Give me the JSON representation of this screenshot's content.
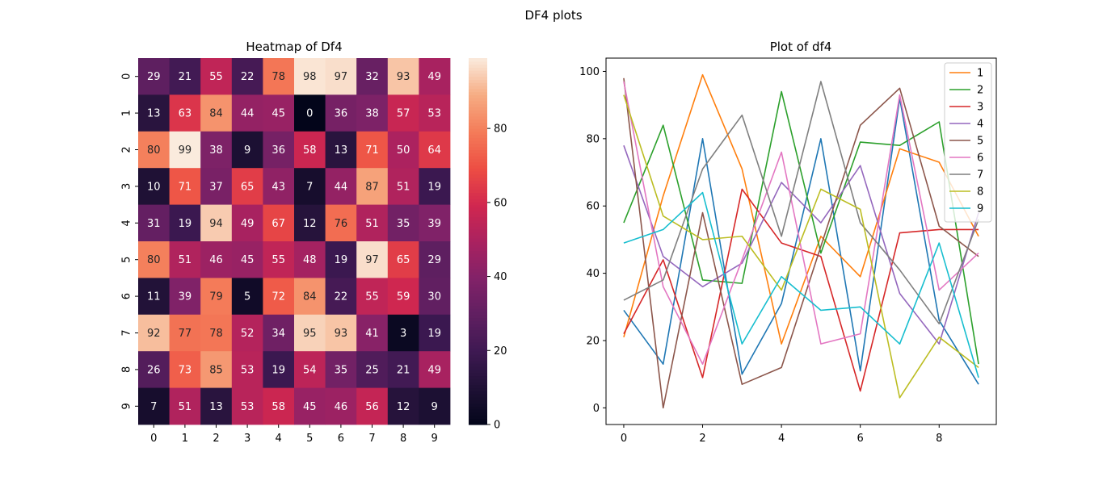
{
  "figure": {
    "suptitle": "DF4 plots"
  },
  "chart_data": [
    {
      "type": "heatmap",
      "title": "Heatmap of Df4",
      "xlabel": "",
      "ylabel": "",
      "x_ticks": [
        "0",
        "1",
        "2",
        "3",
        "4",
        "5",
        "6",
        "7",
        "8",
        "9"
      ],
      "y_ticks": [
        "0",
        "1",
        "2",
        "3",
        "4",
        "5",
        "6",
        "7",
        "8",
        "9"
      ],
      "values": [
        [
          29,
          21,
          55,
          22,
          78,
          98,
          97,
          32,
          93,
          49
        ],
        [
          13,
          63,
          84,
          44,
          45,
          0,
          36,
          38,
          57,
          53
        ],
        [
          80,
          99,
          38,
          9,
          36,
          58,
          13,
          71,
          50,
          64
        ],
        [
          10,
          71,
          37,
          65,
          43,
          7,
          44,
          87,
          51,
          19
        ],
        [
          31,
          19,
          94,
          49,
          67,
          12,
          76,
          51,
          35,
          39
        ],
        [
          80,
          51,
          46,
          45,
          55,
          48,
          19,
          97,
          65,
          29
        ],
        [
          11,
          39,
          79,
          5,
          72,
          84,
          22,
          55,
          59,
          30
        ],
        [
          92,
          77,
          78,
          52,
          34,
          95,
          93,
          41,
          3,
          19
        ],
        [
          26,
          73,
          85,
          53,
          19,
          54,
          35,
          25,
          21,
          49
        ],
        [
          7,
          51,
          13,
          53,
          58,
          45,
          46,
          56,
          12,
          9
        ]
      ],
      "colorbar": {
        "min": 0,
        "max": 99,
        "ticks": [
          "0",
          "20",
          "40",
          "60",
          "80"
        ],
        "colormap": "rocket"
      },
      "annotations": true
    },
    {
      "type": "line",
      "title": "Plot of df4",
      "xlabel": "",
      "ylabel": "",
      "x": [
        0,
        1,
        2,
        3,
        4,
        5,
        6,
        7,
        8,
        9
      ],
      "x_ticks": [
        "0",
        "2",
        "4",
        "6",
        "8"
      ],
      "y_ticks": [
        "0",
        "20",
        "40",
        "60",
        "80",
        "100"
      ],
      "xlim": [
        -0.45,
        9.45
      ],
      "ylim": [
        -4.95,
        103.95
      ],
      "legend_position": "top-right",
      "series": [
        {
          "values": [
            29,
            13,
            80,
            10,
            31,
            80,
            11,
            92,
            26,
            7
          ],
          "color": "#1f77b4"
        },
        {
          "name": "1",
          "values": [
            21,
            63,
            99,
            71,
            19,
            51,
            39,
            77,
            73,
            51
          ],
          "color": "#1f77b4"
        },
        {
          "name": "2",
          "values": [
            55,
            84,
            38,
            37,
            94,
            46,
            79,
            78,
            85,
            13
          ],
          "color": "#ff7f0e"
        },
        {
          "name": "3",
          "values": [
            22,
            44,
            9,
            65,
            49,
            45,
            5,
            52,
            53,
            53
          ],
          "color": "#2ca02c"
        },
        {
          "name": "4",
          "values": [
            78,
            45,
            36,
            43,
            67,
            55,
            72,
            34,
            19,
            58
          ],
          "color": "#d62728"
        },
        {
          "name": "5",
          "values": [
            98,
            0,
            58,
            7,
            12,
            48,
            84,
            95,
            54,
            45
          ],
          "color": "#9467bd"
        },
        {
          "name": "6",
          "values": [
            97,
            36,
            13,
            44,
            76,
            19,
            22,
            93,
            35,
            46
          ],
          "color": "#8c564b"
        },
        {
          "name": "7",
          "values": [
            32,
            38,
            71,
            87,
            51,
            97,
            55,
            41,
            25,
            56
          ],
          "color": "#e377c2"
        },
        {
          "name": "8",
          "values": [
            93,
            57,
            50,
            51,
            35,
            65,
            59,
            3,
            21,
            12
          ],
          "color": "#7f7f7f"
        },
        {
          "name": "9",
          "values": [
            49,
            53,
            64,
            19,
            39,
            29,
            30,
            19,
            49,
            9
          ],
          "color": "#bcbd22"
        }
      ]
    }
  ]
}
